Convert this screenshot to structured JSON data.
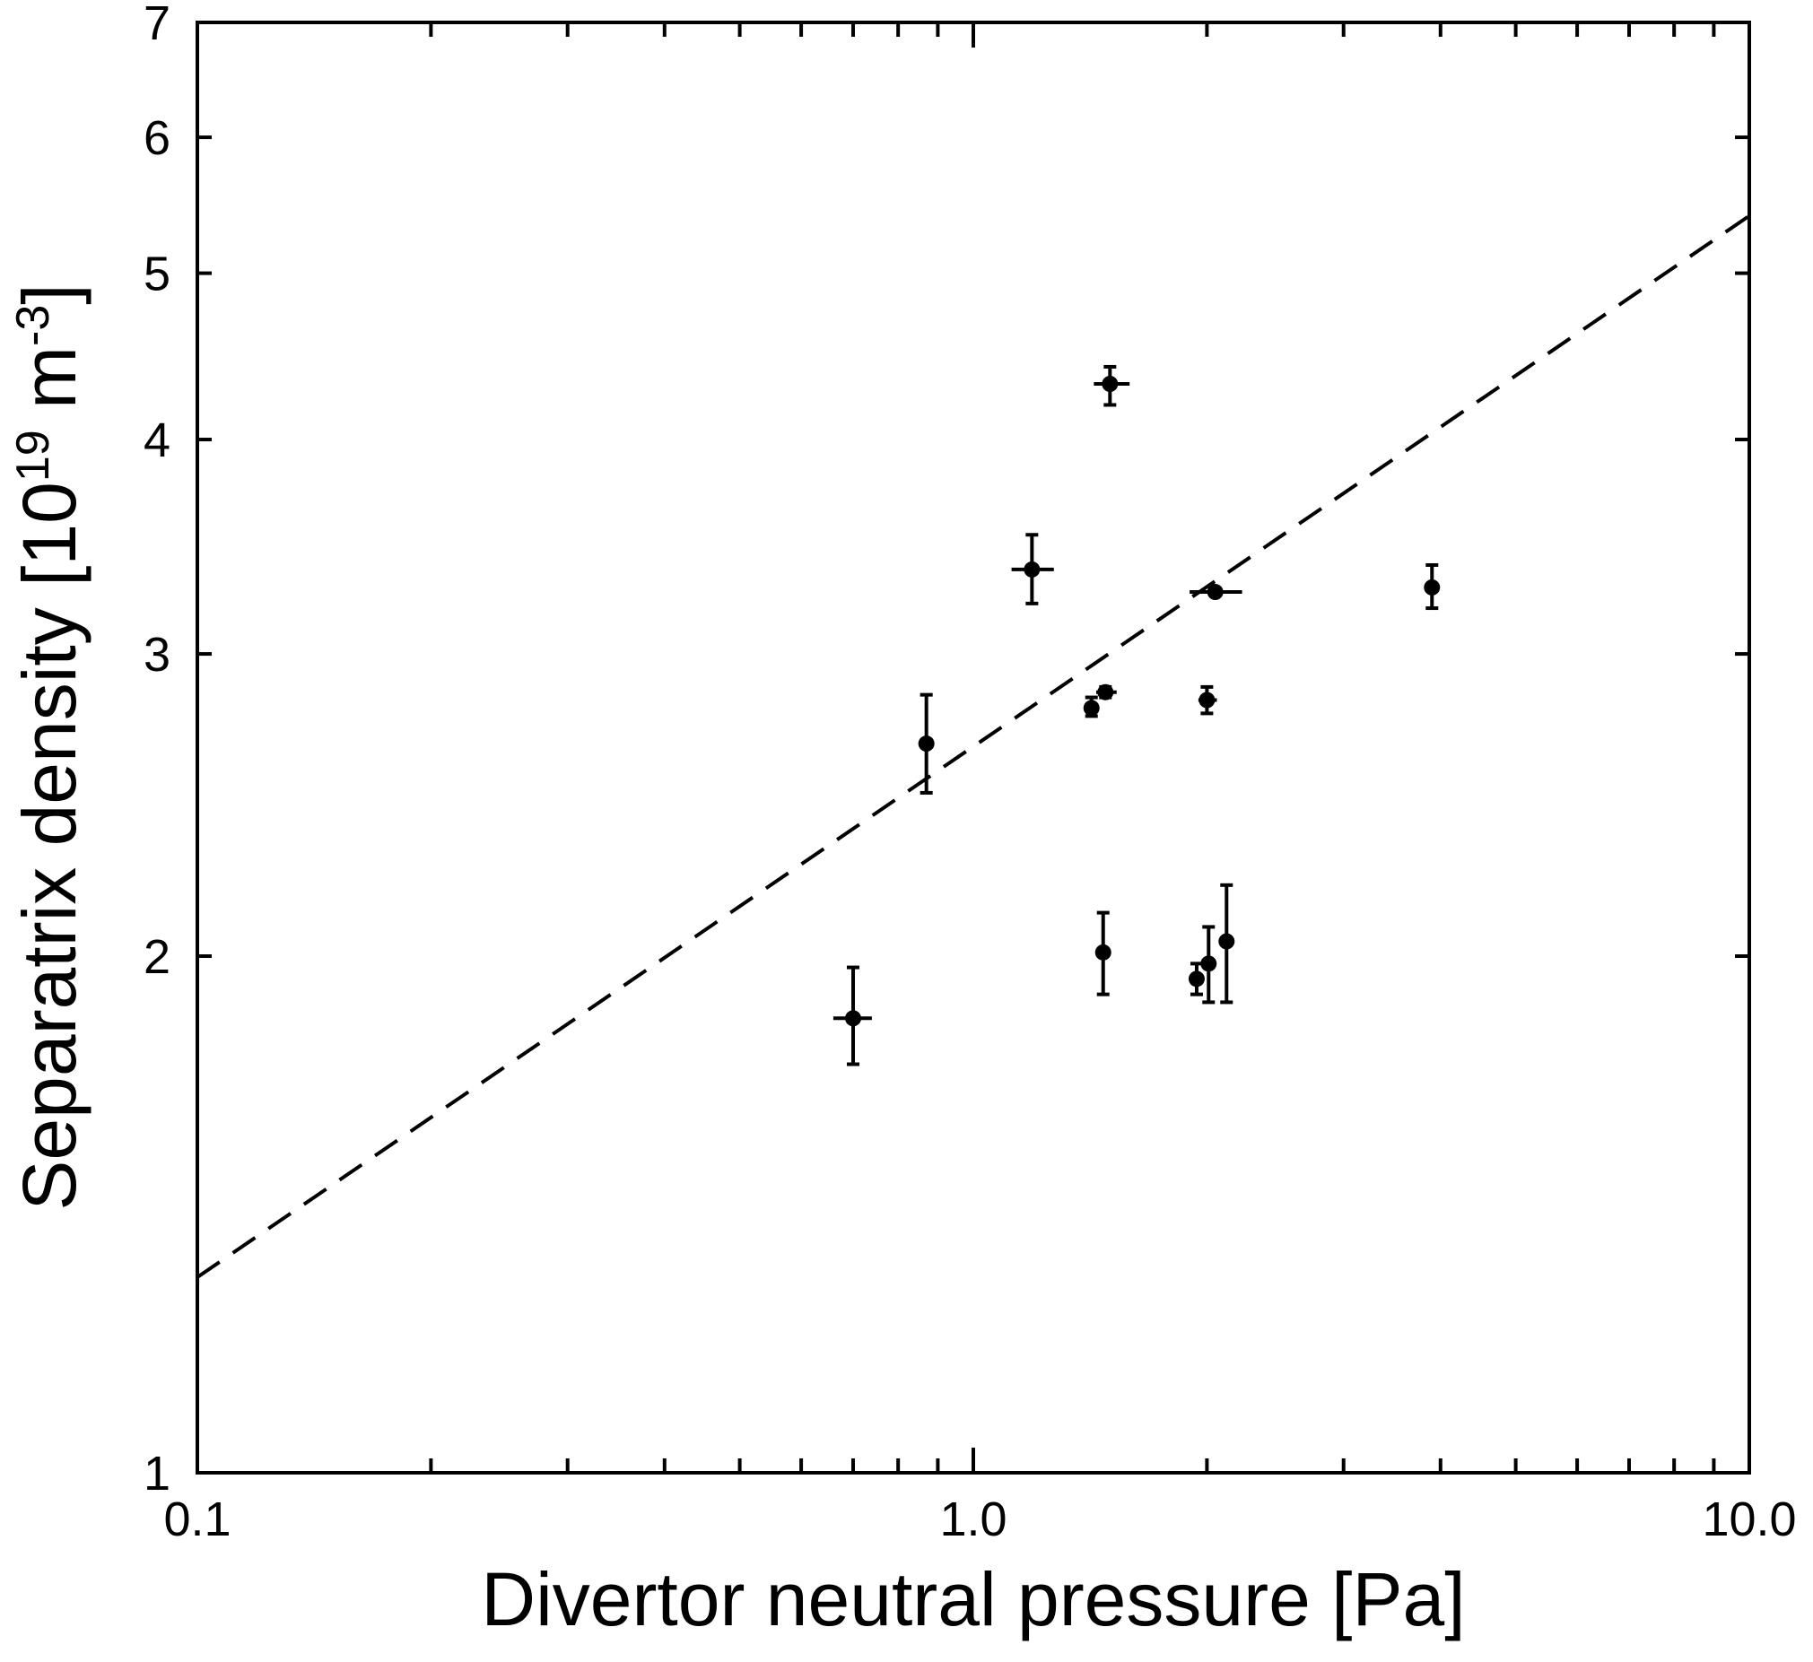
{
  "chart_data": {
    "type": "scatter",
    "xlabel": "Divertor neutral pressure [Pa]",
    "ylabel": {
      "prefix": "Separatrix density [10",
      "exp1": "19",
      "mid": " m",
      "exp2": "-3",
      "suffix": "]"
    },
    "x_scale": "log",
    "y_scale": "log",
    "xlim": [
      0.1,
      10.0
    ],
    "ylim": [
      1,
      7
    ],
    "x_ticks": [
      {
        "value": 0.1,
        "label": "0.1"
      },
      {
        "value": 1.0,
        "label": "1.0"
      },
      {
        "value": 10.0,
        "label": "10.0"
      }
    ],
    "y_ticks": [
      {
        "value": 1,
        "label": "1"
      },
      {
        "value": 2,
        "label": "2"
      },
      {
        "value": 3,
        "label": "3"
      },
      {
        "value": 4,
        "label": "4"
      },
      {
        "value": 5,
        "label": "5"
      },
      {
        "value": 6,
        "label": "6"
      },
      {
        "value": 7,
        "label": "7"
      }
    ],
    "grid": false,
    "points": [
      {
        "x": 0.7,
        "y": 1.84,
        "xerr": [
          0.66,
          0.74
        ],
        "yerr": [
          1.73,
          1.97
        ]
      },
      {
        "x": 0.87,
        "y": 2.66,
        "xerr": [
          0.85,
          0.89
        ],
        "yerr": [
          2.49,
          2.84
        ]
      },
      {
        "x": 1.19,
        "y": 3.36,
        "xerr": [
          1.12,
          1.27
        ],
        "yerr": [
          3.21,
          3.52
        ]
      },
      {
        "x": 1.5,
        "y": 4.31,
        "xerr": [
          1.43,
          1.59
        ],
        "yerr": [
          4.19,
          4.41
        ]
      },
      {
        "x": 1.48,
        "y": 2.85,
        "xerr": [
          1.44,
          1.53
        ],
        "yerr": [
          2.83,
          2.87
        ]
      },
      {
        "x": 1.42,
        "y": 2.79,
        "xerr": [
          1.4,
          1.44
        ],
        "yerr": [
          2.76,
          2.83
        ]
      },
      {
        "x": 1.47,
        "y": 2.01,
        "xerr": [
          1.45,
          1.49
        ],
        "yerr": [
          1.9,
          2.12
        ]
      },
      {
        "x": 2.0,
        "y": 2.82,
        "xerr": [
          1.95,
          2.06
        ],
        "yerr": [
          2.77,
          2.87
        ]
      },
      {
        "x": 2.05,
        "y": 3.26,
        "xerr": [
          1.9,
          2.22
        ],
        "yerr": [
          3.26,
          3.26
        ]
      },
      {
        "x": 1.94,
        "y": 1.94,
        "xerr": [
          1.92,
          1.96
        ],
        "yerr": [
          1.9,
          1.98
        ]
      },
      {
        "x": 2.01,
        "y": 1.98,
        "xerr": [
          1.99,
          2.03
        ],
        "yerr": [
          1.88,
          2.08
        ]
      },
      {
        "x": 2.12,
        "y": 2.04,
        "xerr": [
          2.1,
          2.14
        ],
        "yerr": [
          1.88,
          2.2
        ]
      },
      {
        "x": 3.9,
        "y": 3.28,
        "xerr": [
          3.88,
          3.92
        ],
        "yerr": [
          3.19,
          3.38
        ]
      }
    ],
    "fit_line": {
      "style": "dashed",
      "x": [
        0.1,
        10.0
      ],
      "y": [
        1.3,
        5.4
      ]
    }
  }
}
